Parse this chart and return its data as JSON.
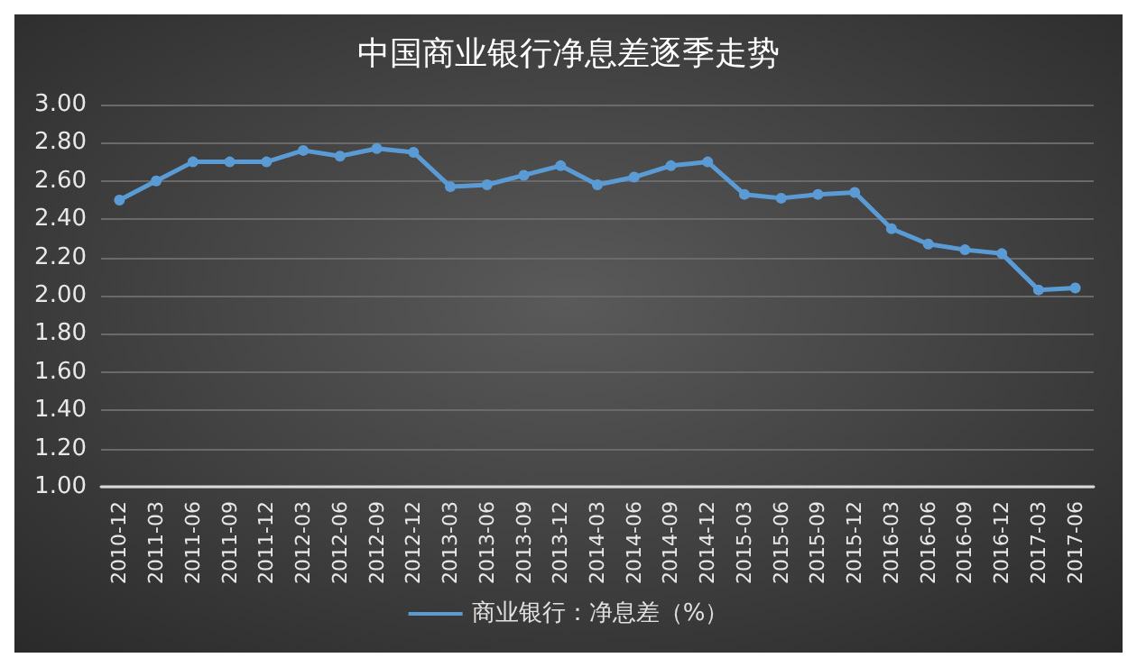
{
  "chart_data": {
    "type": "line",
    "title": "中国商业银行净息差逐季走势",
    "categories": [
      "2010-12",
      "2011-03",
      "2011-06",
      "2011-09",
      "2011-12",
      "2012-03",
      "2012-06",
      "2012-09",
      "2012-12",
      "2013-03",
      "2013-06",
      "2013-09",
      "2013-12",
      "2014-03",
      "2014-06",
      "2014-09",
      "2014-12",
      "2015-03",
      "2015-06",
      "2015-09",
      "2015-12",
      "2016-03",
      "2016-06",
      "2016-09",
      "2016-12",
      "2017-03",
      "2017-06"
    ],
    "series": [
      {
        "name": "商业银行：净息差（%）",
        "color": "#5b9bd5",
        "values": [
          2.5,
          2.6,
          2.7,
          2.7,
          2.7,
          2.76,
          2.73,
          2.77,
          2.75,
          2.57,
          2.58,
          2.63,
          2.68,
          2.58,
          2.62,
          2.68,
          2.7,
          2.53,
          2.51,
          2.53,
          2.54,
          2.35,
          2.27,
          2.24,
          2.22,
          2.03,
          2.04
        ]
      }
    ],
    "ylim": [
      1.0,
      3.0
    ],
    "yticks": [
      {
        "value": 1.0,
        "label": "1.00"
      },
      {
        "value": 1.2,
        "label": "1.20"
      },
      {
        "value": 1.4,
        "label": "1.40"
      },
      {
        "value": 1.6,
        "label": "1.60"
      },
      {
        "value": 1.8,
        "label": "1.80"
      },
      {
        "value": 2.0,
        "label": "2.00"
      },
      {
        "value": 2.2,
        "label": "2.20"
      },
      {
        "value": 2.4,
        "label": "2.40"
      },
      {
        "value": 2.6,
        "label": "2.60"
      },
      {
        "value": 2.8,
        "label": "2.80"
      },
      {
        "value": 3.0,
        "label": "3.00"
      }
    ],
    "grid": "y",
    "legend": "bottom",
    "marker": "circle",
    "line_style": "solid"
  }
}
